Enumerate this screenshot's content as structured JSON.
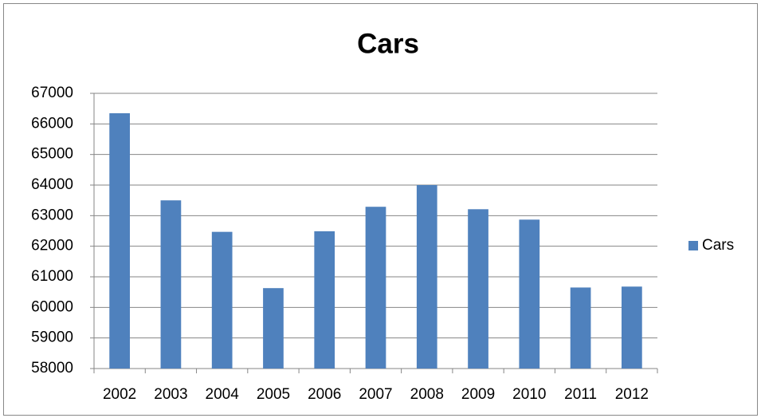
{
  "chart_data": {
    "type": "bar",
    "title": "Cars",
    "categories": [
      "2002",
      "2003",
      "2004",
      "2005",
      "2006",
      "2007",
      "2008",
      "2009",
      "2010",
      "2011",
      "2012"
    ],
    "series": [
      {
        "name": "Cars",
        "color": "#4f81bd",
        "values": [
          66350,
          63500,
          62470,
          60630,
          62490,
          63290,
          64000,
          63210,
          62870,
          60650,
          60680
        ]
      }
    ],
    "ylim": [
      58000,
      67000
    ],
    "yticks": [
      58000,
      59000,
      60000,
      61000,
      62000,
      63000,
      64000,
      65000,
      66000,
      67000
    ],
    "grid": true,
    "legend": "right"
  }
}
